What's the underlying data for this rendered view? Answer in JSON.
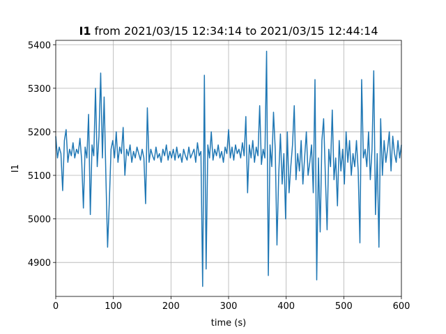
{
  "chart_data": {
    "type": "line",
    "title_prefix": "I1",
    "title": "from 2021/03/15 12:34:14 to 2021/03/15 12:44:14",
    "xlabel": "time (s)",
    "ylabel": "I1",
    "color": "#1f77b4",
    "grid": true,
    "xlim": [
      0,
      600
    ],
    "xticks": [
      0,
      100,
      200,
      300,
      400,
      500,
      600
    ],
    "ylim": [
      4822,
      5410
    ],
    "yticks": [
      4900,
      5000,
      5100,
      5200,
      5300,
      5400
    ],
    "x": [
      0,
      3,
      6,
      9,
      12,
      15,
      18,
      21,
      24,
      27,
      30,
      33,
      36,
      39,
      42,
      45,
      48,
      51,
      54,
      57,
      60,
      63,
      66,
      69,
      72,
      75,
      78,
      81,
      84,
      87,
      90,
      93,
      96,
      99,
      102,
      105,
      108,
      111,
      114,
      117,
      120,
      123,
      126,
      129,
      132,
      135,
      138,
      141,
      144,
      147,
      150,
      153,
      156,
      159,
      162,
      165,
      168,
      171,
      174,
      177,
      180,
      183,
      186,
      189,
      192,
      195,
      198,
      201,
      204,
      207,
      210,
      213,
      216,
      219,
      222,
      225,
      228,
      231,
      234,
      237,
      240,
      243,
      246,
      249,
      252,
      255,
      258,
      261,
      264,
      267,
      270,
      273,
      276,
      279,
      282,
      285,
      288,
      291,
      294,
      297,
      300,
      303,
      306,
      309,
      312,
      315,
      318,
      321,
      324,
      327,
      330,
      333,
      336,
      339,
      342,
      345,
      348,
      351,
      354,
      357,
      360,
      363,
      366,
      369,
      372,
      375,
      378,
      381,
      384,
      387,
      390,
      393,
      396,
      399,
      402,
      405,
      408,
      411,
      414,
      417,
      420,
      423,
      426,
      429,
      432,
      435,
      438,
      441,
      444,
      447,
      450,
      453,
      456,
      459,
      462,
      465,
      468,
      471,
      474,
      477,
      480,
      483,
      486,
      489,
      492,
      495,
      498,
      501,
      504,
      507,
      510,
      513,
      516,
      519,
      522,
      525,
      528,
      531,
      534,
      537,
      540,
      543,
      546,
      549,
      552,
      555,
      558,
      561,
      564,
      567,
      570,
      573,
      576,
      579,
      582,
      585,
      588,
      591,
      594,
      597,
      600
    ],
    "values": [
      5190,
      5140,
      5165,
      5150,
      5065,
      5180,
      5205,
      5130,
      5160,
      5145,
      5175,
      5140,
      5160,
      5150,
      5185,
      5135,
      5025,
      5165,
      5140,
      5240,
      5010,
      5170,
      5145,
      5300,
      5120,
      5190,
      5335,
      5140,
      5280,
      5100,
      4935,
      5040,
      5160,
      5180,
      5140,
      5200,
      5130,
      5165,
      5150,
      5210,
      5100,
      5160,
      5145,
      5170,
      5130,
      5155,
      5140,
      5165,
      5150,
      5135,
      5160,
      5140,
      5035,
      5255,
      5130,
      5160,
      5145,
      5135,
      5165,
      5140,
      5150,
      5130,
      5160,
      5145,
      5170,
      5135,
      5155,
      5140,
      5160,
      5135,
      5165,
      5140,
      5150,
      5130,
      5160,
      5145,
      5135,
      5165,
      5140,
      5150,
      5160,
      5130,
      5175,
      5145,
      5155,
      4845,
      5330,
      4885,
      5170,
      5140,
      5200,
      5135,
      5160,
      5145,
      5170,
      5140,
      5155,
      5130,
      5165,
      5150,
      5205,
      5140,
      5165,
      5135,
      5170,
      5150,
      5160,
      5140,
      5175,
      5145,
      5235,
      5060,
      5170,
      5140,
      5180,
      5130,
      5165,
      5145,
      5260,
      5125,
      5160,
      5140,
      5385,
      4870,
      5170,
      5120,
      5245,
      5160,
      4940,
      5100,
      5195,
      5080,
      5150,
      5000,
      5200,
      5060,
      5120,
      5170,
      5260,
      5090,
      5150,
      5110,
      5180,
      5080,
      5140,
      5200,
      5100,
      5130,
      5170,
      5060,
      5320,
      4860,
      5140,
      4970,
      5180,
      5230,
      5100,
      4975,
      5160,
      5120,
      5250,
      5090,
      5140,
      5030,
      5180,
      5110,
      5160,
      5080,
      5200,
      5130,
      5180,
      5100,
      5150,
      5120,
      5180,
      5110,
      4945,
      5320,
      5140,
      5160,
      5120,
      5200,
      5090,
      5160,
      5340,
      5010,
      5150,
      4935,
      5230,
      5100,
      5180,
      5130,
      5160,
      5200,
      5110,
      5190,
      5150,
      5130,
      5180,
      5140,
      5170
    ]
  }
}
